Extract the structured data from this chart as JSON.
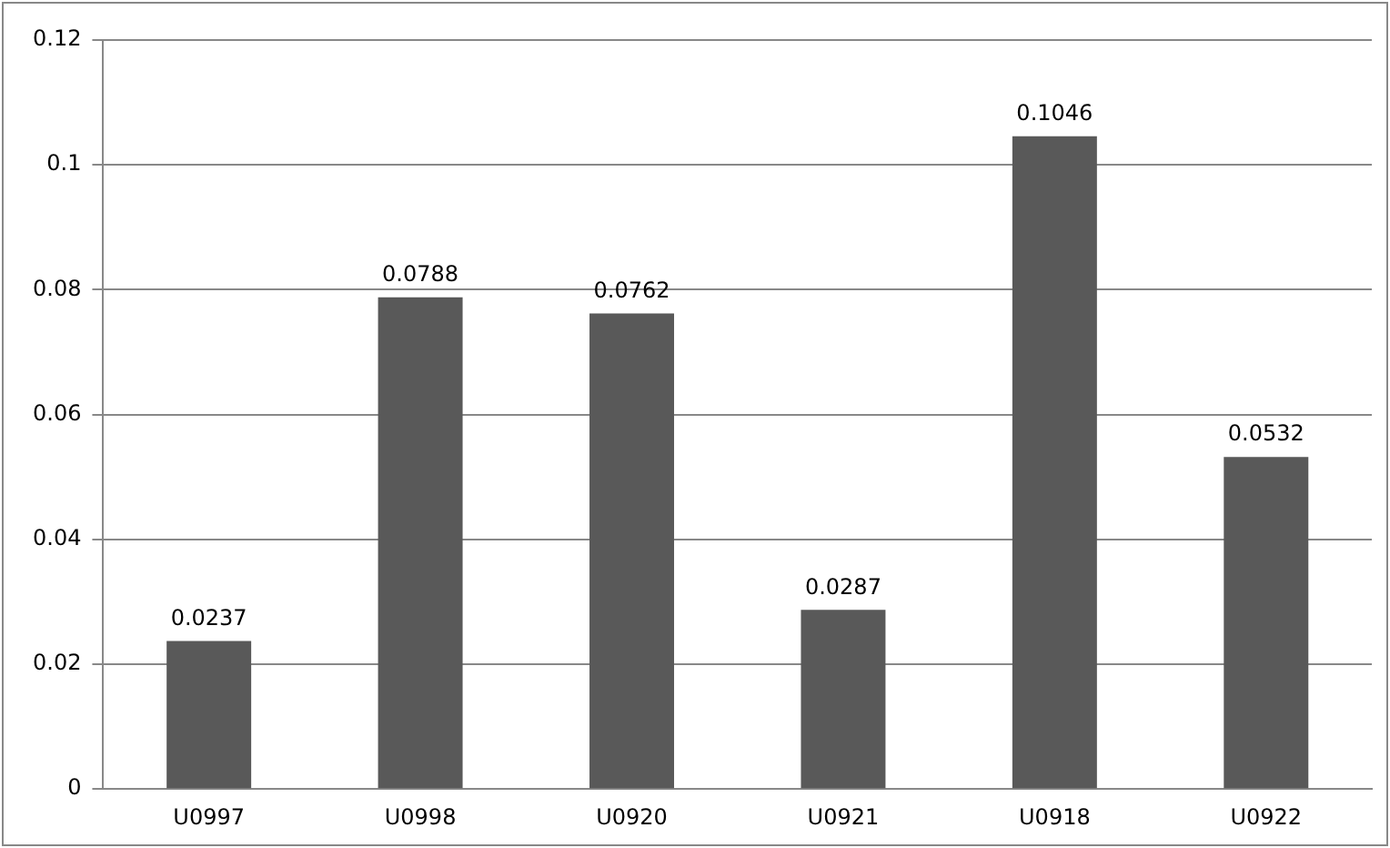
{
  "chart_data": {
    "type": "bar",
    "categories": [
      "U0997",
      "U0998",
      "U0920",
      "U0921",
      "U0918",
      "U0922"
    ],
    "values": [
      0.0237,
      0.0788,
      0.0762,
      0.0287,
      0.1046,
      0.0532
    ],
    "color": "#595959",
    "ylim": [
      0,
      0.12
    ],
    "yticks": [
      0,
      0.02,
      0.04,
      0.06,
      0.08,
      0.1,
      0.12
    ],
    "grid": "y",
    "data_labels": true,
    "legend": false
  }
}
